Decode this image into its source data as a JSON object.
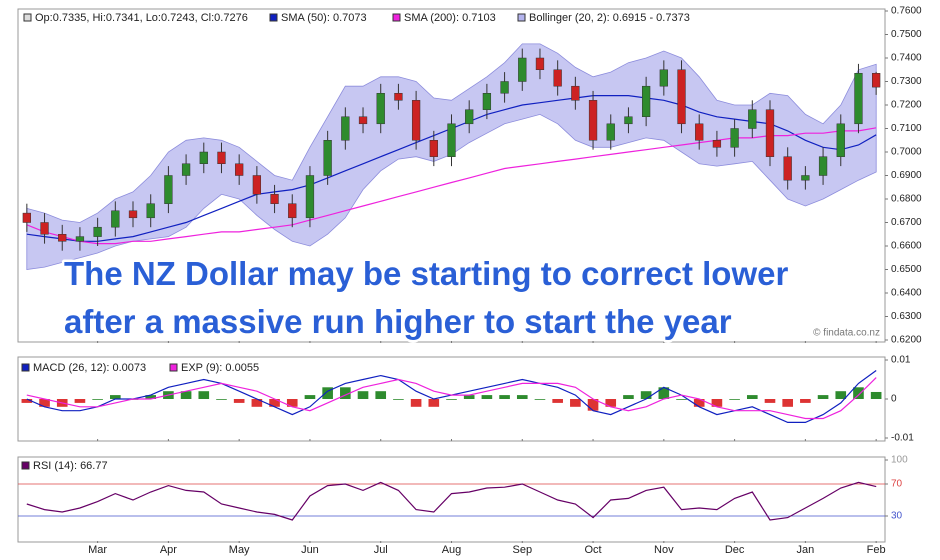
{
  "chart_data": [
    {
      "type": "candlestick",
      "ohlc_label": "Op:0.7335, Hi:0.7341, Lo:0.7243, Cl:0.7276",
      "categories": [
        null,
        null,
        null,
        null,
        "Mar",
        null,
        null,
        null,
        "Apr",
        null,
        null,
        null,
        "May",
        null,
        null,
        null,
        "Jun",
        null,
        null,
        null,
        "Jul",
        null,
        null,
        null,
        "Aug",
        null,
        null,
        null,
        "Sep",
        null,
        null,
        null,
        "Oct",
        null,
        null,
        null,
        "Nov",
        null,
        null,
        null,
        "Dec",
        null,
        null,
        null,
        "Jan",
        null,
        null,
        null,
        "Feb"
      ],
      "open": [
        0.674,
        0.67,
        0.665,
        0.662,
        0.664,
        0.668,
        0.675,
        0.672,
        0.678,
        0.69,
        0.695,
        0.7,
        0.695,
        0.69,
        0.682,
        0.678,
        0.672,
        0.69,
        0.705,
        0.715,
        0.712,
        0.725,
        0.722,
        0.705,
        0.698,
        0.712,
        0.718,
        0.725,
        0.73,
        0.74,
        0.735,
        0.728,
        0.722,
        0.705,
        0.712,
        0.715,
        0.728,
        0.735,
        0.712,
        0.705,
        0.702,
        0.71,
        0.718,
        0.698,
        0.688,
        0.69,
        0.698,
        0.712,
        0.7335
      ],
      "high": [
        0.678,
        0.674,
        0.669,
        0.668,
        0.672,
        0.679,
        0.679,
        0.682,
        0.694,
        0.699,
        0.704,
        0.704,
        0.699,
        0.694,
        0.686,
        0.682,
        0.694,
        0.709,
        0.719,
        0.719,
        0.729,
        0.729,
        0.726,
        0.709,
        0.716,
        0.722,
        0.729,
        0.734,
        0.744,
        0.744,
        0.739,
        0.732,
        0.726,
        0.716,
        0.719,
        0.732,
        0.739,
        0.739,
        0.716,
        0.709,
        0.714,
        0.722,
        0.722,
        0.702,
        0.694,
        0.702,
        0.716,
        0.7375,
        0.7341
      ],
      "low": [
        0.666,
        0.661,
        0.658,
        0.658,
        0.66,
        0.664,
        0.668,
        0.668,
        0.674,
        0.686,
        0.691,
        0.691,
        0.686,
        0.678,
        0.674,
        0.668,
        0.668,
        0.686,
        0.701,
        0.708,
        0.708,
        0.718,
        0.701,
        0.694,
        0.694,
        0.708,
        0.714,
        0.721,
        0.726,
        0.731,
        0.724,
        0.718,
        0.701,
        0.701,
        0.708,
        0.711,
        0.724,
        0.708,
        0.701,
        0.698,
        0.698,
        0.706,
        0.694,
        0.684,
        0.684,
        0.686,
        0.694,
        0.708,
        0.7243
      ],
      "close": [
        0.67,
        0.665,
        0.662,
        0.664,
        0.668,
        0.675,
        0.672,
        0.678,
        0.69,
        0.695,
        0.7,
        0.695,
        0.69,
        0.682,
        0.678,
        0.672,
        0.69,
        0.705,
        0.715,
        0.712,
        0.725,
        0.722,
        0.705,
        0.698,
        0.712,
        0.718,
        0.725,
        0.73,
        0.74,
        0.735,
        0.728,
        0.722,
        0.705,
        0.712,
        0.715,
        0.728,
        0.735,
        0.712,
        0.705,
        0.702,
        0.71,
        0.718,
        0.698,
        0.688,
        0.69,
        0.698,
        0.712,
        0.7335,
        0.7276
      ],
      "up_color": "#2e8b2e",
      "down_color": "#cc2222",
      "ohlc_color": "#333333",
      "series": [
        {
          "name": "SMA (50): 0.7073",
          "color": "#1020c0",
          "values": [
            0.665,
            0.664,
            0.663,
            0.662,
            0.662,
            0.663,
            0.664,
            0.666,
            0.668,
            0.67,
            0.673,
            0.676,
            0.679,
            0.682,
            0.683,
            0.684,
            0.686,
            0.689,
            0.692,
            0.695,
            0.698,
            0.701,
            0.704,
            0.707,
            0.71,
            0.713,
            0.716,
            0.718,
            0.72,
            0.721,
            0.722,
            0.723,
            0.724,
            0.724,
            0.724,
            0.723,
            0.722,
            0.72,
            0.717,
            0.715,
            0.714,
            0.713,
            0.712,
            0.709,
            0.705,
            0.702,
            0.701,
            0.703,
            0.7073
          ]
        },
        {
          "name": "SMA (200): 0.7103",
          "color": "#ee22dd",
          "values": [
            0.669,
            0.666,
            0.664,
            0.662,
            0.661,
            0.661,
            0.662,
            0.662,
            0.663,
            0.664,
            0.665,
            0.666,
            0.666,
            0.667,
            0.668,
            0.669,
            0.671,
            0.673,
            0.675,
            0.677,
            0.679,
            0.681,
            0.683,
            0.685,
            0.687,
            0.689,
            0.691,
            0.693,
            0.694,
            0.695,
            0.696,
            0.697,
            0.698,
            0.699,
            0.7,
            0.701,
            0.702,
            0.703,
            0.704,
            0.705,
            0.706,
            0.706,
            0.707,
            0.707,
            0.708,
            0.708,
            0.709,
            0.709,
            0.7103
          ]
        }
      ],
      "band": {
        "name": "Bollinger (20, 2): 0.6915 - 0.7373",
        "color": "#b4b4ee",
        "upper": [
          0.676,
          0.674,
          0.671,
          0.67,
          0.674,
          0.68,
          0.683,
          0.69,
          0.7,
          0.705,
          0.706,
          0.705,
          0.702,
          0.696,
          0.69,
          0.688,
          0.702,
          0.715,
          0.728,
          0.728,
          0.732,
          0.732,
          0.73,
          0.723,
          0.722,
          0.727,
          0.732,
          0.738,
          0.746,
          0.746,
          0.742,
          0.736,
          0.732,
          0.734,
          0.738,
          0.74,
          0.743,
          0.74,
          0.732,
          0.722,
          0.72,
          0.72,
          0.725,
          0.724,
          0.716,
          0.712,
          0.72,
          0.735,
          0.7373
        ],
        "lower": [
          0.65,
          0.651,
          0.653,
          0.655,
          0.657,
          0.66,
          0.662,
          0.663,
          0.664,
          0.668,
          0.676,
          0.682,
          0.68,
          0.673,
          0.667,
          0.662,
          0.66,
          0.665,
          0.672,
          0.684,
          0.692,
          0.697,
          0.698,
          0.696,
          0.699,
          0.704,
          0.708,
          0.712,
          0.714,
          0.716,
          0.712,
          0.705,
          0.702,
          0.702,
          0.704,
          0.706,
          0.705,
          0.7,
          0.695,
          0.694,
          0.695,
          0.696,
          0.688,
          0.68,
          0.677,
          0.68,
          0.684,
          0.688,
          0.6915
        ]
      },
      "ylim": [
        0.62,
        0.76
      ],
      "yticks": [
        {
          "value": 0.62,
          "label": "0.6200"
        },
        {
          "value": 0.63,
          "label": "0.6300"
        },
        {
          "value": 0.64,
          "label": "0.6400"
        },
        {
          "value": 0.65,
          "label": "0.6500"
        },
        {
          "value": 0.66,
          "label": "0.6600"
        },
        {
          "value": 0.67,
          "label": "0.6700"
        },
        {
          "value": 0.68,
          "label": "0.6800"
        },
        {
          "value": 0.69,
          "label": "0.6900"
        },
        {
          "value": 0.7,
          "label": "0.7000"
        },
        {
          "value": 0.71,
          "label": "0.7100"
        },
        {
          "value": 0.72,
          "label": "0.7200"
        },
        {
          "value": 0.73,
          "label": "0.7300"
        },
        {
          "value": 0.74,
          "label": "0.7400"
        },
        {
          "value": 0.75,
          "label": "0.7500"
        },
        {
          "value": 0.76,
          "label": "0.7600"
        }
      ],
      "annotations": [
        "The NZ Dollar may be starting to correct lower",
        "after a massive run higher to start the year"
      ],
      "source": "© findata.co.nz"
    },
    {
      "type": "macd",
      "series": [
        {
          "name": "MACD (26, 12): 0.0073",
          "color": "#1020c0",
          "values": [
            0.0,
            -0.002,
            -0.003,
            -0.003,
            -0.002,
            0.0,
            0.0,
            0.001,
            0.003,
            0.004,
            0.005,
            0.004,
            0.002,
            0.0,
            -0.002,
            -0.004,
            -0.002,
            0.002,
            0.004,
            0.005,
            0.006,
            0.005,
            0.002,
            0.0,
            0.001,
            0.002,
            0.003,
            0.004,
            0.005,
            0.004,
            0.003,
            0.001,
            -0.003,
            -0.004,
            -0.002,
            0.0,
            0.003,
            0.001,
            -0.002,
            -0.004,
            -0.003,
            -0.002,
            -0.004,
            -0.006,
            -0.006,
            -0.004,
            -0.001,
            0.004,
            0.0073
          ]
        },
        {
          "name": "EXP (9): 0.0055",
          "color": "#ee22dd",
          "values": [
            0.001,
            0.0,
            -0.001,
            -0.002,
            -0.002,
            -0.001,
            0.0,
            0.0,
            0.001,
            0.002,
            0.003,
            0.004,
            0.003,
            0.002,
            0.0,
            -0.002,
            -0.003,
            -0.001,
            0.001,
            0.003,
            0.004,
            0.005,
            0.004,
            0.002,
            0.001,
            0.001,
            0.002,
            0.003,
            0.004,
            0.004,
            0.004,
            0.003,
            0.0,
            -0.002,
            -0.003,
            -0.002,
            0.0,
            0.001,
            0.0,
            -0.002,
            -0.003,
            -0.003,
            -0.003,
            -0.004,
            -0.005,
            -0.005,
            -0.003,
            0.001,
            0.0055
          ]
        }
      ],
      "histogram": {
        "up_color": "#2e8b2e",
        "down_color": "#dd3333",
        "values": [
          -0.001,
          -0.002,
          -0.002,
          -0.001,
          0.0,
          0.001,
          0.0,
          0.001,
          0.002,
          0.002,
          0.002,
          0.0,
          -0.001,
          -0.002,
          -0.002,
          -0.002,
          0.001,
          0.003,
          0.003,
          0.002,
          0.002,
          0.0,
          -0.002,
          -0.002,
          0.0,
          0.001,
          0.001,
          0.001,
          0.001,
          0.0,
          -0.001,
          -0.002,
          -0.003,
          -0.002,
          0.001,
          0.002,
          0.003,
          0.0,
          -0.002,
          -0.002,
          0.0,
          0.001,
          -0.001,
          -0.002,
          -0.001,
          0.001,
          0.002,
          0.003,
          0.0018
        ]
      },
      "ylim": [
        -0.01,
        0.01
      ],
      "yticks": [
        -0.01,
        0,
        0.01
      ]
    },
    {
      "type": "rsi",
      "series": [
        {
          "name": "RSI (14): 66.77",
          "color": "#660066",
          "values": [
            45,
            38,
            35,
            40,
            48,
            58,
            50,
            60,
            68,
            62,
            60,
            45,
            40,
            35,
            32,
            25,
            55,
            68,
            70,
            62,
            72,
            62,
            38,
            35,
            58,
            60,
            65,
            66,
            70,
            60,
            50,
            45,
            28,
            50,
            52,
            62,
            66,
            38,
            40,
            38,
            52,
            60,
            25,
            28,
            40,
            52,
            65,
            72,
            66.77
          ]
        }
      ],
      "ylim": [
        0,
        100
      ],
      "yticks": [
        30,
        70,
        100
      ],
      "tick_colors": [
        "#4455cc",
        "#dd4444",
        "#999999"
      ]
    }
  ]
}
